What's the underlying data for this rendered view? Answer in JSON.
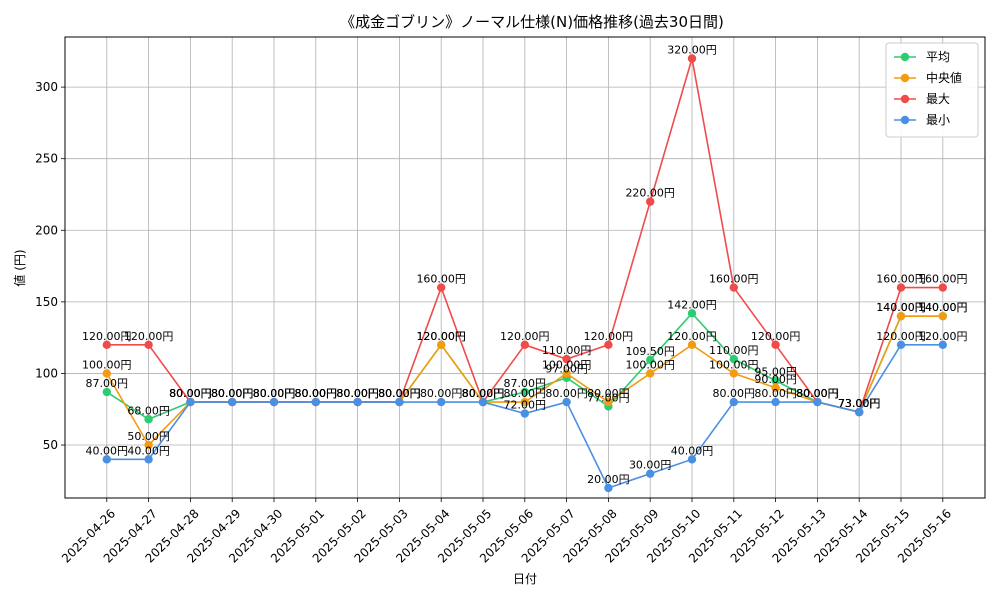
{
  "chart_data": {
    "type": "line",
    "title": "《成金ゴブリン》ノーマル仕様(N)価格推移(過去30日間)",
    "xlabel": "日付",
    "ylabel": "値 (円)",
    "ylim": [
      13,
      335
    ],
    "yticks": [
      50,
      100,
      150,
      200,
      250,
      300
    ],
    "grid": true,
    "legend_position": "top-right",
    "label_suffix": "円",
    "categories": [
      "2025-04-26",
      "2025-04-27",
      "2025-04-28",
      "2025-04-29",
      "2025-04-30",
      "2025-05-01",
      "2025-05-02",
      "2025-05-03",
      "2025-05-04",
      "2025-05-05",
      "2025-05-06",
      "2025-05-07",
      "2025-05-08",
      "2025-05-09",
      "2025-05-10",
      "2025-05-11",
      "2025-05-12",
      "2025-05-13",
      "2025-05-14",
      "2025-05-15",
      "2025-05-16"
    ],
    "series": [
      {
        "name": "平均",
        "color": "#2ecc71",
        "values": [
          87,
          68,
          80,
          80,
          80,
          80,
          80,
          80,
          120,
          80,
          87,
          97,
          77,
          109.5,
          142,
          110,
          95,
          80,
          73,
          140,
          140
        ]
      },
      {
        "name": "中央値",
        "color": "#f39c12",
        "values": [
          100,
          50,
          80,
          80,
          80,
          80,
          80,
          80,
          120,
          80,
          80,
          100,
          80,
          100,
          120,
          100,
          90,
          80,
          73,
          140,
          140
        ]
      },
      {
        "name": "最大",
        "color": "#f04b4b",
        "values": [
          120,
          120,
          80,
          80,
          80,
          80,
          80,
          80,
          160,
          80,
          120,
          110,
          120,
          220,
          320,
          160,
          120,
          80,
          73,
          160,
          160
        ]
      },
      {
        "name": "最小",
        "color": "#4a90e2",
        "values": [
          40,
          40,
          80,
          80,
          80,
          80,
          80,
          80,
          80,
          80,
          72,
          80,
          20,
          30,
          40,
          80,
          80,
          80,
          73,
          120,
          120
        ]
      }
    ]
  }
}
